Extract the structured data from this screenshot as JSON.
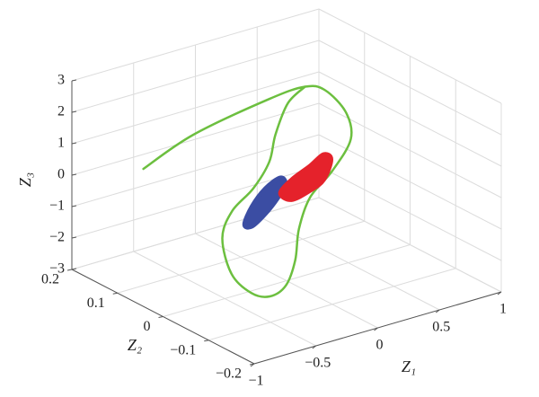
{
  "chart_data": {
    "type": "line3d",
    "xlabel": "Z₁",
    "ylabel": "Z₂",
    "zlabel": "Z₃",
    "xlim": [
      -1,
      1
    ],
    "ylim": [
      -0.2,
      0.2
    ],
    "zlim": [
      -3,
      3
    ],
    "xticks": [
      {
        "value": -1,
        "label": "−1"
      },
      {
        "value": -0.5,
        "label": "−0.5"
      },
      0,
      0.5,
      1
    ],
    "yticks": [
      {
        "value": -0.2,
        "label": "−0.2"
      },
      {
        "value": -0.1,
        "label": "−0.1"
      },
      0,
      0.1,
      0.2
    ],
    "zticks": [
      {
        "value": -3,
        "label": "−3"
      },
      {
        "value": -2,
        "label": "−2"
      },
      {
        "value": -1,
        "label": "−1"
      },
      0,
      1,
      2,
      3
    ],
    "grid": true,
    "series": [
      {
        "color": "#6cbf3f",
        "filled": false,
        "x": [
          -0.79,
          -0.57,
          -0.14,
          0.15,
          0.31,
          0.48,
          0.52,
          0.37,
          0.19,
          0.1,
          0.07,
          -0.19,
          -0.32,
          -0.47,
          -0.63,
          -0.52,
          -0.44,
          -0.27,
          -0.14,
          -0.09,
          0.01,
          0.15
        ],
        "y": [
          0.1,
          0.05,
          0,
          0,
          0,
          0,
          0,
          0,
          0,
          0,
          0,
          -0.05,
          -0.05,
          -0.05,
          -0.05,
          0,
          0,
          0,
          0,
          0,
          0,
          0
        ],
        "z": [
          0.71,
          1.92,
          2.94,
          3.0,
          2.71,
          1.81,
          0.91,
          0.07,
          -0.57,
          -1.47,
          -2.43,
          -2.56,
          -2.76,
          -2.48,
          -1.69,
          -1.05,
          -0.28,
          0.24,
          0.94,
          1.75,
          2.63,
          3.0
        ]
      },
      {
        "color": "#3b4da3",
        "filled": true,
        "x": [
          -0.34,
          -0.28,
          -0.17,
          -0.05,
          -0.01,
          -0.07,
          -0.17,
          -0.28
        ],
        "y": [
          0,
          0,
          0,
          0,
          0,
          0,
          0,
          0
        ],
        "z": [
          -0.82,
          -0.32,
          0.13,
          0.33,
          0.08,
          -0.28,
          -0.67,
          -0.95
        ]
      },
      {
        "color": "#e5222b",
        "filled": true,
        "x": [
          -0.05,
          0.04,
          0.19,
          0.3,
          0.36,
          0.3,
          0.19,
          0.04
        ],
        "y": [
          0,
          0,
          0,
          0,
          0,
          0,
          0,
          0
        ],
        "z": [
          -0.16,
          0.16,
          0.43,
          0.67,
          0.44,
          -0.13,
          -0.35,
          -0.47
        ]
      }
    ]
  }
}
